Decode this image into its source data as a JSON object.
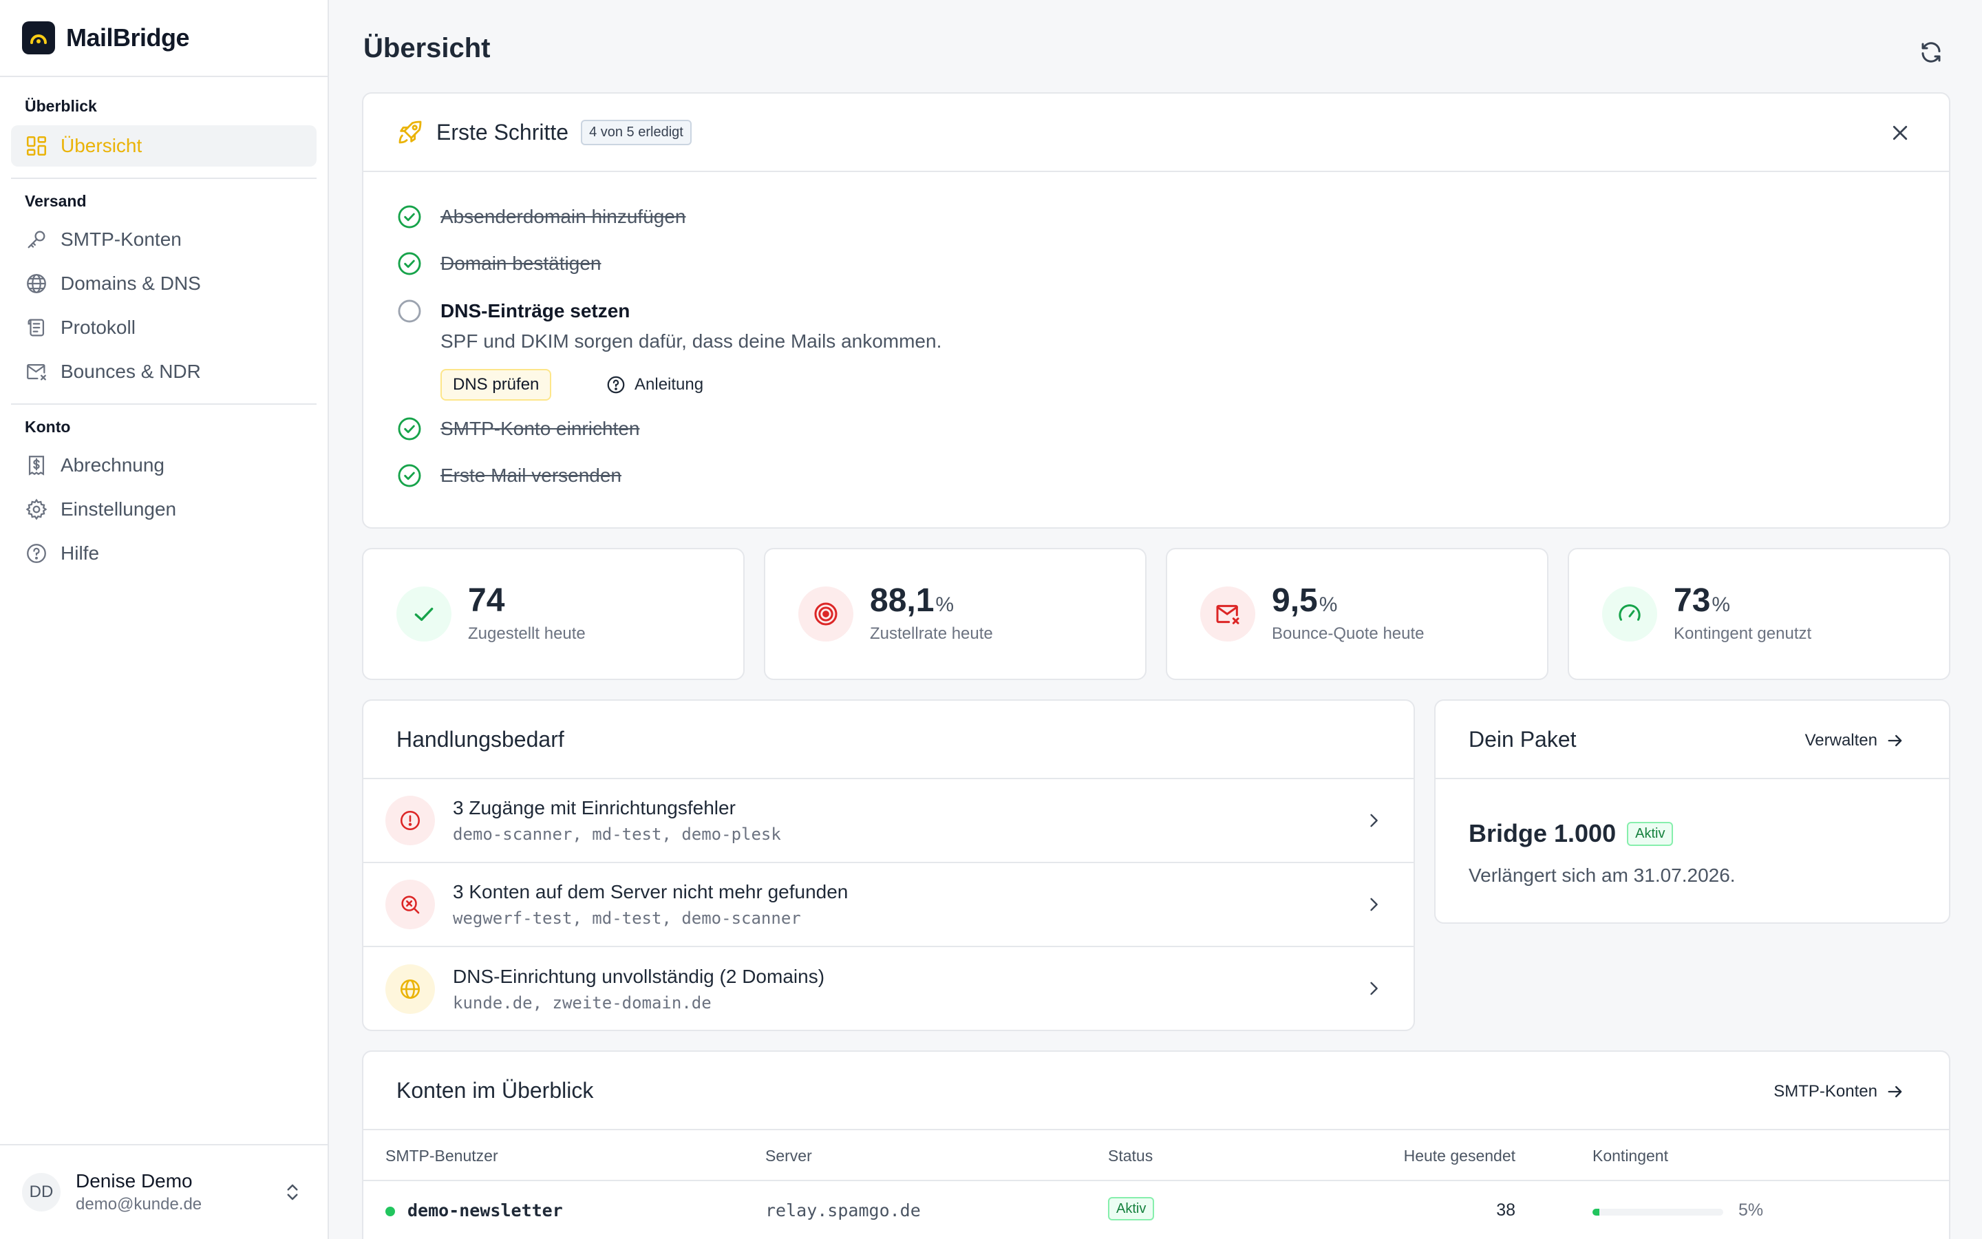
{
  "app": {
    "name": "MailBridge"
  },
  "sidebar": {
    "sections": [
      {
        "heading": "Überblick",
        "items": [
          {
            "label": "Übersicht",
            "icon": "dashboard-icon",
            "active": true
          }
        ]
      },
      {
        "heading": "Versand",
        "items": [
          {
            "label": "SMTP-Konten",
            "icon": "key-icon"
          },
          {
            "label": "Domains & DNS",
            "icon": "globe-icon"
          },
          {
            "label": "Protokoll",
            "icon": "scroll-icon"
          },
          {
            "label": "Bounces & NDR",
            "icon": "mail-x-icon"
          }
        ]
      },
      {
        "heading": "Konto",
        "items": [
          {
            "label": "Abrechnung",
            "icon": "receipt-icon"
          },
          {
            "label": "Einstellungen",
            "icon": "gear-icon"
          },
          {
            "label": "Hilfe",
            "icon": "help-icon"
          }
        ]
      }
    ],
    "user": {
      "initials": "DD",
      "name": "Denise Demo",
      "email": "demo@kunde.de"
    }
  },
  "page": {
    "title": "Übersicht"
  },
  "getting_started": {
    "title": "Erste Schritte",
    "badge": "4 von 5 erledigt",
    "steps": [
      {
        "label": "Absenderdomain hinzufügen",
        "done": true
      },
      {
        "label": "Domain bestätigen",
        "done": true
      },
      {
        "label": "DNS-Einträge setzen",
        "done": false
      },
      {
        "label": "SMTP-Konto einrichten",
        "done": true
      },
      {
        "label": "Erste Mail versenden",
        "done": true
      }
    ],
    "open_step_description": "SPF und DKIM sorgen dafür, dass deine Mails ankommen.",
    "check_button": "DNS prüfen",
    "guide_link": "Anleitung"
  },
  "stats": [
    {
      "value": "74",
      "unit": "",
      "label": "Zugestellt heute",
      "icon": "check-icon",
      "color": "#16a34a",
      "bg": "#ecfdf3"
    },
    {
      "value": "88,1",
      "unit": "%",
      "label": "Zustellrate heute",
      "icon": "target-icon",
      "color": "#dc2626",
      "bg": "#fdecec"
    },
    {
      "value": "9,5",
      "unit": "%",
      "label": "Bounce-Quote heute",
      "icon": "mail-x-icon",
      "color": "#dc2626",
      "bg": "#fdecec"
    },
    {
      "value": "73",
      "unit": "%",
      "label": "Kontingent genutzt",
      "icon": "gauge-icon",
      "color": "#16a34a",
      "bg": "#ecfdf3"
    }
  ],
  "action_needed": {
    "title": "Handlungsbedarf",
    "items": [
      {
        "title": "3 Zugänge mit Einrichtungsfehler",
        "sub": "demo-scanner, md-test, demo-plesk",
        "icon": "alert-circle-icon",
        "color": "#dc2626",
        "bg": "#fdecec"
      },
      {
        "title": "3 Konten auf dem Server nicht mehr gefunden",
        "sub": "wegwerf-test, md-test, demo-scanner",
        "icon": "search-x-icon",
        "color": "#dc2626",
        "bg": "#fdecec"
      },
      {
        "title": "DNS-Einrichtung unvollständig (2 Domains)",
        "sub": "kunde.de, zweite-domain.de",
        "icon": "globe-icon",
        "color": "#eab308",
        "bg": "#fef6dc"
      }
    ]
  },
  "package": {
    "title": "Dein Paket",
    "manage_link": "Verwalten",
    "plan_name": "Bridge 1.000",
    "status": "Aktiv",
    "renewal": "Verlängert sich am 31.07.2026."
  },
  "accounts": {
    "title": "Konten im Überblick",
    "link": "SMTP-Konten",
    "columns": [
      "SMTP-Benutzer",
      "Server",
      "Status",
      "Heute gesendet",
      "Kontingent"
    ],
    "rows": [
      {
        "user": "demo-newsletter",
        "server": "relay.spamgo.de",
        "status": "Aktiv",
        "sent_today": "38",
        "quota": "5%",
        "quota_fraction": 0.05
      }
    ]
  }
}
